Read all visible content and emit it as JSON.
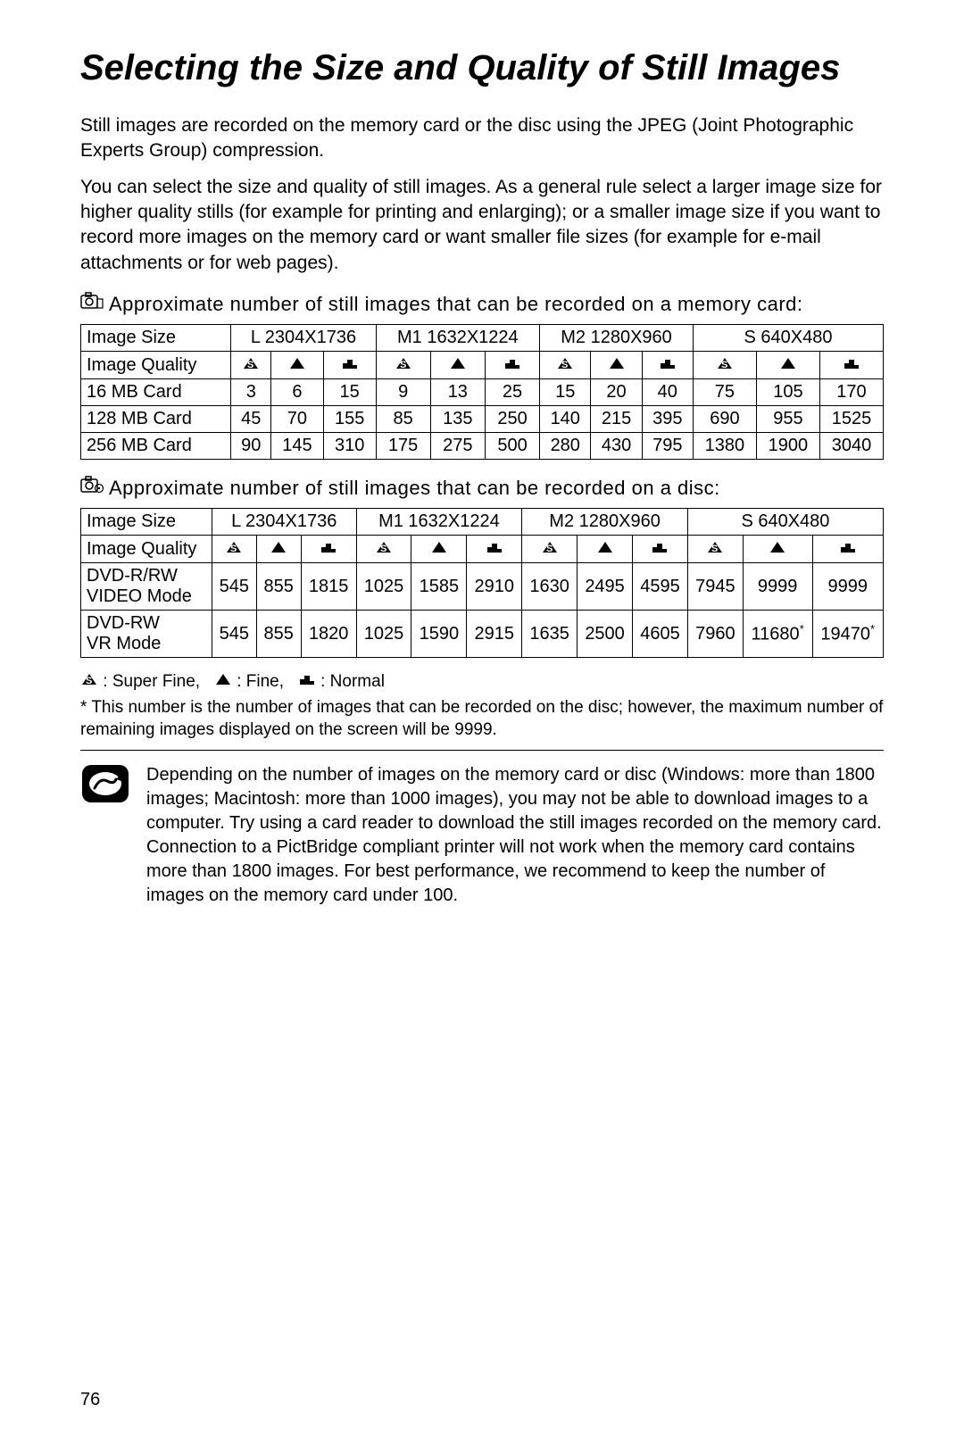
{
  "title": "Selecting the Size and Quality of Still Images",
  "intro1": "Still images are recorded on the memory card or the disc using the JPEG (Joint Photographic Experts Group) compression.",
  "intro2": "You can select the size and quality of still images. As a general rule select a larger image size for higher quality stills (for example for printing and enlarging); or a smaller image size if you want to record more images on the memory card or want smaller file sizes (for example for e-mail attachments or for web pages).",
  "memcard_heading": "Approximate number of still images that can be recorded on a memory card:",
  "disc_heading": "Approximate number of still images that can be recorded on a disc:",
  "image_sizes": {
    "header_label": "Image Size",
    "quality_label": "Image Quality",
    "sizes": [
      "L 2304X1736",
      "M1 1632X1224",
      "M2 1280X960",
      "S 640X480"
    ]
  },
  "quality_icons": [
    "superfine",
    "fine",
    "normal"
  ],
  "memcard_table": {
    "rows": [
      {
        "label": "16 MB Card",
        "vals": [
          "3",
          "6",
          "15",
          "9",
          "13",
          "25",
          "15",
          "20",
          "40",
          "75",
          "105",
          "170"
        ]
      },
      {
        "label": "128 MB Card",
        "vals": [
          "45",
          "70",
          "155",
          "85",
          "135",
          "250",
          "140",
          "215",
          "395",
          "690",
          "955",
          "1525"
        ]
      },
      {
        "label": "256 MB Card",
        "vals": [
          "90",
          "145",
          "310",
          "175",
          "275",
          "500",
          "280",
          "430",
          "795",
          "1380",
          "1900",
          "3040"
        ]
      }
    ]
  },
  "disc_table": {
    "rows": [
      {
        "label": "DVD-R/RW VIDEO Mode",
        "vals": [
          "545",
          "855",
          "1815",
          "1025",
          "1585",
          "2910",
          "1630",
          "2495",
          "4595",
          "7945",
          "9999",
          "9999"
        ]
      },
      {
        "label": "DVD-RW VR Mode",
        "vals": [
          "545",
          "855",
          "1820",
          "1025",
          "1590",
          "2915",
          "1635",
          "2500",
          "4605",
          "7960",
          "11680*",
          "19470*"
        ],
        "starred": [
          10,
          11
        ]
      }
    ]
  },
  "legend": {
    "superfine": ": Super Fine,",
    "fine": ": Fine,",
    "normal": ": Normal"
  },
  "footnote": "* This number is the number of images that can be recorded on the disc; however, the maximum number of remaining images displayed on the screen will be 9999.",
  "note": {
    "p1": "Depending on the number of images on the memory card or disc (Windows: more than 1800 images; Macintosh: more than 1000 images), you may not be able to download images to a computer. Try using a card reader to download the still images recorded on the memory card.",
    "p2": "Connection to a PictBridge compliant printer will not work when the memory card contains more than 1800 images. For best performance, we recommend to keep the number of images on the memory card under 100."
  },
  "page_number": "76",
  "colors": {
    "text": "#000000",
    "border": "#000000",
    "bg": "#ffffff"
  }
}
